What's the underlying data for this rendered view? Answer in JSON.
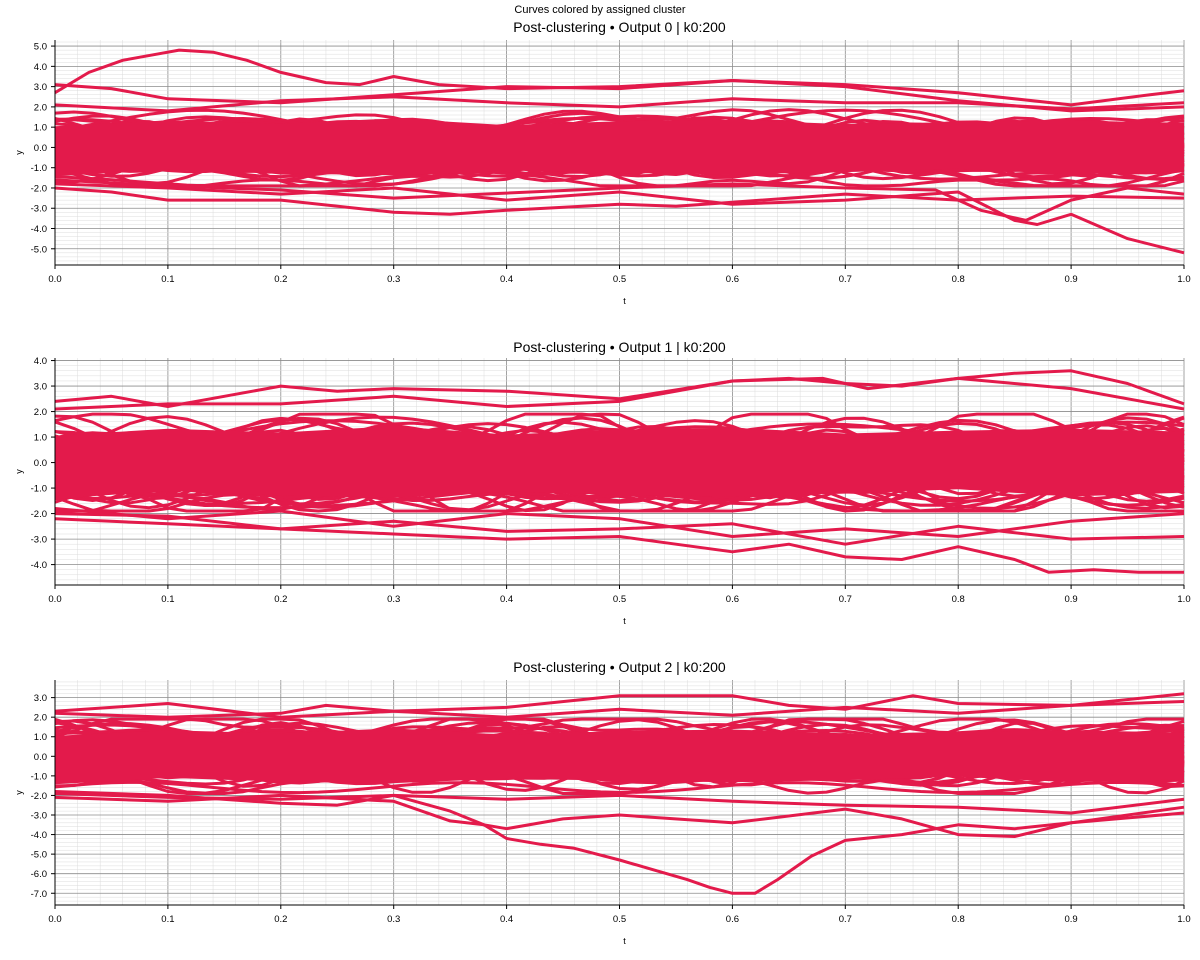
{
  "figure": {
    "suptitle": "Curves colored by assigned cluster"
  },
  "chart_data": [
    {
      "type": "line",
      "title": "Post-clustering • Output 0  |  k0:200",
      "xlabel": "t",
      "ylabel": "y",
      "xlim": [
        0,
        1
      ],
      "ylim": [
        -5.8,
        5.3
      ],
      "xticks": [
        "0.0",
        "0.1",
        "0.2",
        "0.3",
        "0.4",
        "0.5",
        "0.6",
        "0.7",
        "0.8",
        "0.9",
        "1.0"
      ],
      "yticks": [
        "5.0",
        "4.0",
        "3.0",
        "2.0",
        "1.0",
        "0.0",
        "-1.0",
        "-2.0",
        "-3.0",
        "-4.0",
        "-5.0"
      ],
      "grid": true,
      "line_color": "#e31a4b",
      "curve_count": 200,
      "band": {
        "upper": 1.9,
        "lower": -1.9
      },
      "series": [
        {
          "x": [
            0,
            0.03,
            0.06,
            0.09,
            0.11,
            0.14,
            0.17,
            0.2,
            0.24,
            0.27,
            0.3,
            0.34,
            0.4,
            0.5,
            0.6,
            0.7,
            0.8,
            0.9,
            1.0
          ],
          "values": [
            2.7,
            3.7,
            4.3,
            4.6,
            4.8,
            4.7,
            4.3,
            3.7,
            3.2,
            3.1,
            3.5,
            3.1,
            2.9,
            3.0,
            3.3,
            3.0,
            2.3,
            1.8,
            2.0
          ]
        },
        {
          "x": [
            0,
            0.05,
            0.1,
            0.2,
            0.3,
            0.4,
            0.5,
            0.55,
            0.6,
            0.7,
            0.75,
            0.8,
            0.9,
            0.97,
            1.0
          ],
          "values": [
            3.1,
            2.9,
            2.4,
            2.2,
            2.6,
            3.0,
            2.9,
            3.1,
            3.3,
            3.1,
            2.9,
            2.7,
            2.1,
            2.6,
            2.8
          ]
        },
        {
          "x": [
            0,
            0.05,
            0.1,
            0.2,
            0.3,
            0.35,
            0.4,
            0.5,
            0.55,
            0.6,
            0.7,
            0.8,
            0.9,
            1.0
          ],
          "values": [
            -2.0,
            -2.2,
            -2.6,
            -2.6,
            -3.2,
            -3.3,
            -3.1,
            -2.8,
            -2.9,
            -2.7,
            -2.3,
            -2.6,
            -2.4,
            -2.5
          ]
        },
        {
          "x": [
            0,
            0.1,
            0.2,
            0.3,
            0.4,
            0.5,
            0.6,
            0.7,
            0.8,
            0.85,
            0.87,
            0.9,
            0.95,
            1.0
          ],
          "values": [
            -1.8,
            -2.0,
            -2.3,
            -2.0,
            -2.6,
            -2.2,
            -2.8,
            -2.6,
            -2.2,
            -3.6,
            -3.8,
            -3.3,
            -4.5,
            -5.2
          ]
        },
        {
          "x": [
            0,
            0.1,
            0.2,
            0.3,
            0.5,
            0.6,
            0.7,
            0.78,
            0.82,
            0.86,
            0.9,
            0.95,
            1.0
          ],
          "values": [
            -1.6,
            -1.9,
            -2.1,
            -2.5,
            -2.0,
            -1.8,
            -2.0,
            -2.1,
            -3.1,
            -3.6,
            -2.6,
            -2.0,
            -2.3
          ]
        },
        {
          "x": [
            0,
            0.1,
            0.2,
            0.3,
            0.4,
            0.5,
            0.6,
            0.7,
            0.8,
            0.9,
            1.0
          ],
          "values": [
            2.1,
            1.8,
            2.3,
            2.5,
            2.2,
            2.0,
            2.4,
            2.2,
            2.2,
            1.9,
            2.2
          ]
        }
      ]
    },
    {
      "type": "line",
      "title": "Post-clustering • Output 1  |  k0:200",
      "xlabel": "t",
      "ylabel": "y",
      "xlim": [
        0,
        1
      ],
      "ylim": [
        -4.8,
        4.1
      ],
      "xticks": [
        "0.0",
        "0.1",
        "0.2",
        "0.3",
        "0.4",
        "0.5",
        "0.6",
        "0.7",
        "0.8",
        "0.9",
        "1.0"
      ],
      "yticks": [
        "4.0",
        "3.0",
        "2.0",
        "1.0",
        "0.0",
        "-1.0",
        "-2.0",
        "-3.0",
        "-4.0"
      ],
      "grid": true,
      "line_color": "#e31a4b",
      "curve_count": 200,
      "band": {
        "upper": 1.9,
        "lower": -1.9
      },
      "series": [
        {
          "x": [
            0,
            0.05,
            0.1,
            0.15,
            0.2,
            0.25,
            0.3,
            0.4,
            0.5,
            0.6,
            0.65,
            0.7,
            0.75,
            0.8,
            0.85,
            0.9,
            0.95,
            1.0
          ],
          "values": [
            2.4,
            2.6,
            2.2,
            2.6,
            3.0,
            2.8,
            2.9,
            2.8,
            2.5,
            3.2,
            3.3,
            3.1,
            3.0,
            3.3,
            3.5,
            3.6,
            3.1,
            2.3
          ]
        },
        {
          "x": [
            0,
            0.1,
            0.2,
            0.3,
            0.4,
            0.5,
            0.6,
            0.68,
            0.72,
            0.8,
            0.9,
            1.0
          ],
          "values": [
            2.1,
            2.3,
            2.3,
            2.6,
            2.2,
            2.4,
            3.2,
            3.3,
            2.9,
            3.3,
            2.9,
            2.1
          ]
        },
        {
          "x": [
            0,
            0.1,
            0.2,
            0.3,
            0.4,
            0.5,
            0.55,
            0.6,
            0.65,
            0.7,
            0.75,
            0.8,
            0.85,
            0.88,
            0.92,
            0.96,
            1.0
          ],
          "values": [
            -2.2,
            -2.4,
            -2.6,
            -2.8,
            -3.0,
            -2.9,
            -3.2,
            -3.5,
            -3.2,
            -3.7,
            -3.8,
            -3.3,
            -3.8,
            -4.3,
            -4.2,
            -4.3,
            -4.3
          ]
        },
        {
          "x": [
            0,
            0.1,
            0.2,
            0.3,
            0.4,
            0.5,
            0.6,
            0.7,
            0.8,
            0.9,
            1.0
          ],
          "values": [
            -2.0,
            -2.1,
            -2.6,
            -2.3,
            -2.7,
            -2.6,
            -2.4,
            -3.2,
            -2.5,
            -3.0,
            -2.9
          ]
        },
        {
          "x": [
            0,
            0.1,
            0.2,
            0.3,
            0.4,
            0.5,
            0.6,
            0.7,
            0.8,
            0.9,
            1.0
          ],
          "values": [
            -1.8,
            -2.2,
            -1.9,
            -2.5,
            -2.0,
            -2.2,
            -2.9,
            -2.6,
            -2.9,
            -2.3,
            -2.0
          ]
        }
      ]
    },
    {
      "type": "line",
      "title": "Post-clustering • Output 2  |  k0:200",
      "xlabel": "t",
      "ylabel": "y",
      "xlim": [
        0,
        1
      ],
      "ylim": [
        -7.6,
        3.9
      ],
      "xticks": [
        "0.0",
        "0.1",
        "0.2",
        "0.3",
        "0.4",
        "0.5",
        "0.6",
        "0.7",
        "0.8",
        "0.9",
        "1.0"
      ],
      "yticks": [
        "3.0",
        "2.0",
        "1.0",
        "0.0",
        "-1.0",
        "-2.0",
        "-3.0",
        "-4.0",
        "-5.0",
        "-6.0",
        "-7.0"
      ],
      "grid": true,
      "line_color": "#e31a4b",
      "curve_count": 200,
      "band": {
        "upper": 1.9,
        "lower": -1.9
      },
      "series": [
        {
          "x": [
            0,
            0.1,
            0.2,
            0.3,
            0.35,
            0.38,
            0.4,
            0.43,
            0.46,
            0.5,
            0.53,
            0.56,
            0.58,
            0.6,
            0.62,
            0.64,
            0.67,
            0.7,
            0.75,
            0.8,
            0.85,
            0.9,
            1.0
          ],
          "values": [
            -1.9,
            -2.1,
            -2.2,
            -2.0,
            -2.8,
            -3.5,
            -4.2,
            -4.5,
            -4.7,
            -5.3,
            -5.8,
            -6.3,
            -6.7,
            -7.0,
            -7.0,
            -6.3,
            -5.1,
            -4.3,
            -4.0,
            -3.5,
            -3.7,
            -3.4,
            -2.9
          ]
        },
        {
          "x": [
            0,
            0.1,
            0.2,
            0.3,
            0.35,
            0.38,
            0.4,
            0.45,
            0.5,
            0.6,
            0.7,
            0.75,
            0.8,
            0.85,
            0.9,
            1.0
          ],
          "values": [
            -2.1,
            -2.3,
            -2.0,
            -2.3,
            -3.3,
            -3.5,
            -3.7,
            -3.2,
            -3.0,
            -3.4,
            -2.7,
            -3.2,
            -4.0,
            -4.1,
            -3.4,
            -2.6
          ]
        },
        {
          "x": [
            0,
            0.05,
            0.1,
            0.2,
            0.3,
            0.4,
            0.5,
            0.6,
            0.65,
            0.7,
            0.76,
            0.8,
            0.9,
            1.0
          ],
          "values": [
            2.3,
            2.5,
            2.7,
            2.0,
            2.3,
            2.5,
            3.1,
            3.1,
            2.6,
            2.4,
            3.1,
            2.7,
            2.6,
            3.2
          ]
        },
        {
          "x": [
            0,
            0.1,
            0.2,
            0.24,
            0.3,
            0.4,
            0.5,
            0.6,
            0.7,
            0.8,
            0.9,
            1.0
          ],
          "values": [
            2.2,
            2.0,
            2.2,
            2.6,
            2.3,
            2.0,
            2.4,
            2.1,
            2.5,
            2.2,
            2.6,
            2.8
          ]
        },
        {
          "x": [
            0,
            0.1,
            0.2,
            0.25,
            0.3,
            0.4,
            0.5,
            0.6,
            0.7,
            0.8,
            0.9,
            1.0
          ],
          "values": [
            -1.8,
            -2.0,
            -2.4,
            -2.5,
            -2.0,
            -2.2,
            -2.0,
            -2.3,
            -2.5,
            -2.6,
            -2.9,
            -2.2
          ]
        }
      ]
    }
  ]
}
